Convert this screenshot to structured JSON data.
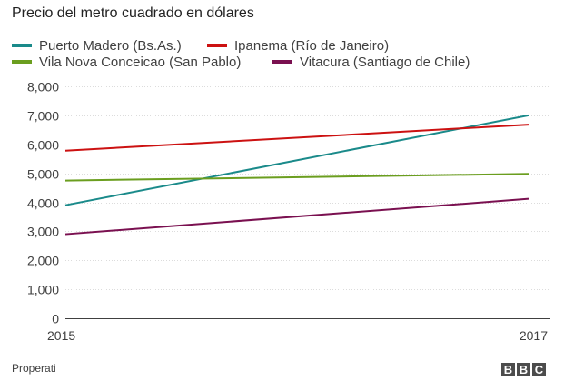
{
  "chart_data": {
    "type": "line",
    "title": "Precio del metro cuadrado en dólares",
    "x": [
      "2015",
      "2017"
    ],
    "ylim": [
      0,
      8000
    ],
    "yticks": [
      0,
      1000,
      2000,
      3000,
      4000,
      5000,
      6000,
      7000,
      8000
    ],
    "ytick_labels": [
      "0",
      "1,000",
      "2,000",
      "3,000",
      "4,000",
      "5,000",
      "6,000",
      "7,000",
      "8,000"
    ],
    "grid": true,
    "legend_position": "top",
    "series": [
      {
        "name": "Puerto Madero (Bs.As.)",
        "color": "#1a8a8a",
        "values": [
          3900,
          7000
        ]
      },
      {
        "name": "Ipanema (Río de Janeiro)",
        "color": "#cc1111",
        "values": [
          5780,
          6680
        ]
      },
      {
        "name": "Vila Nova Conceicao (San Pablo)",
        "color": "#6b9e1f",
        "values": [
          4750,
          4980
        ]
      },
      {
        "name": "Vitacura (Santiago de Chile)",
        "color": "#7a1050",
        "values": [
          2900,
          4120
        ]
      }
    ]
  },
  "footer": {
    "source": "Properati",
    "logo_letters": [
      "B",
      "B",
      "C"
    ]
  }
}
